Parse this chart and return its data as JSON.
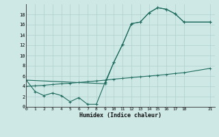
{
  "xlabel": "Humidex (Indice chaleur)",
  "bg_color": "#cde8e5",
  "grid_color": "#b0cfcc",
  "line_color": "#1e6b5e",
  "series1_x": [
    0,
    1,
    2,
    3,
    4,
    5,
    6,
    7,
    8,
    9,
    10,
    11,
    12,
    13,
    14,
    15,
    16,
    17,
    18,
    21
  ],
  "series1_y": [
    5.2,
    3.0,
    2.2,
    2.7,
    2.2,
    1.0,
    1.8,
    0.5,
    0.5,
    4.8,
    8.7,
    12.2,
    16.2,
    16.5,
    18.3,
    19.3,
    19.0,
    18.1,
    16.5,
    16.5
  ],
  "series2_x": [
    0,
    9,
    10,
    11,
    12,
    13,
    14,
    15,
    16,
    17,
    18,
    21
  ],
  "series2_y": [
    5.2,
    4.5,
    8.7,
    12.2,
    16.2,
    16.5,
    18.3,
    19.3,
    19.0,
    18.1,
    16.5,
    16.5
  ],
  "series3_x": [
    0,
    1,
    2,
    3,
    4,
    5,
    6,
    7,
    8,
    9,
    10,
    11,
    12,
    13,
    14,
    15,
    16,
    17,
    18,
    21
  ],
  "series3_y": [
    4.0,
    4.1,
    4.2,
    4.35,
    4.5,
    4.6,
    4.75,
    4.9,
    5.05,
    5.2,
    5.4,
    5.55,
    5.7,
    5.85,
    6.0,
    6.15,
    6.3,
    6.5,
    6.65,
    7.5
  ],
  "xlim": [
    0,
    21.5
  ],
  "ylim": [
    0,
    20
  ],
  "xticks": [
    0,
    1,
    2,
    3,
    4,
    5,
    6,
    7,
    8,
    9,
    10,
    11,
    12,
    13,
    14,
    15,
    16,
    17,
    18,
    21
  ],
  "yticks": [
    0,
    2,
    4,
    6,
    8,
    10,
    12,
    14,
    16,
    18
  ]
}
